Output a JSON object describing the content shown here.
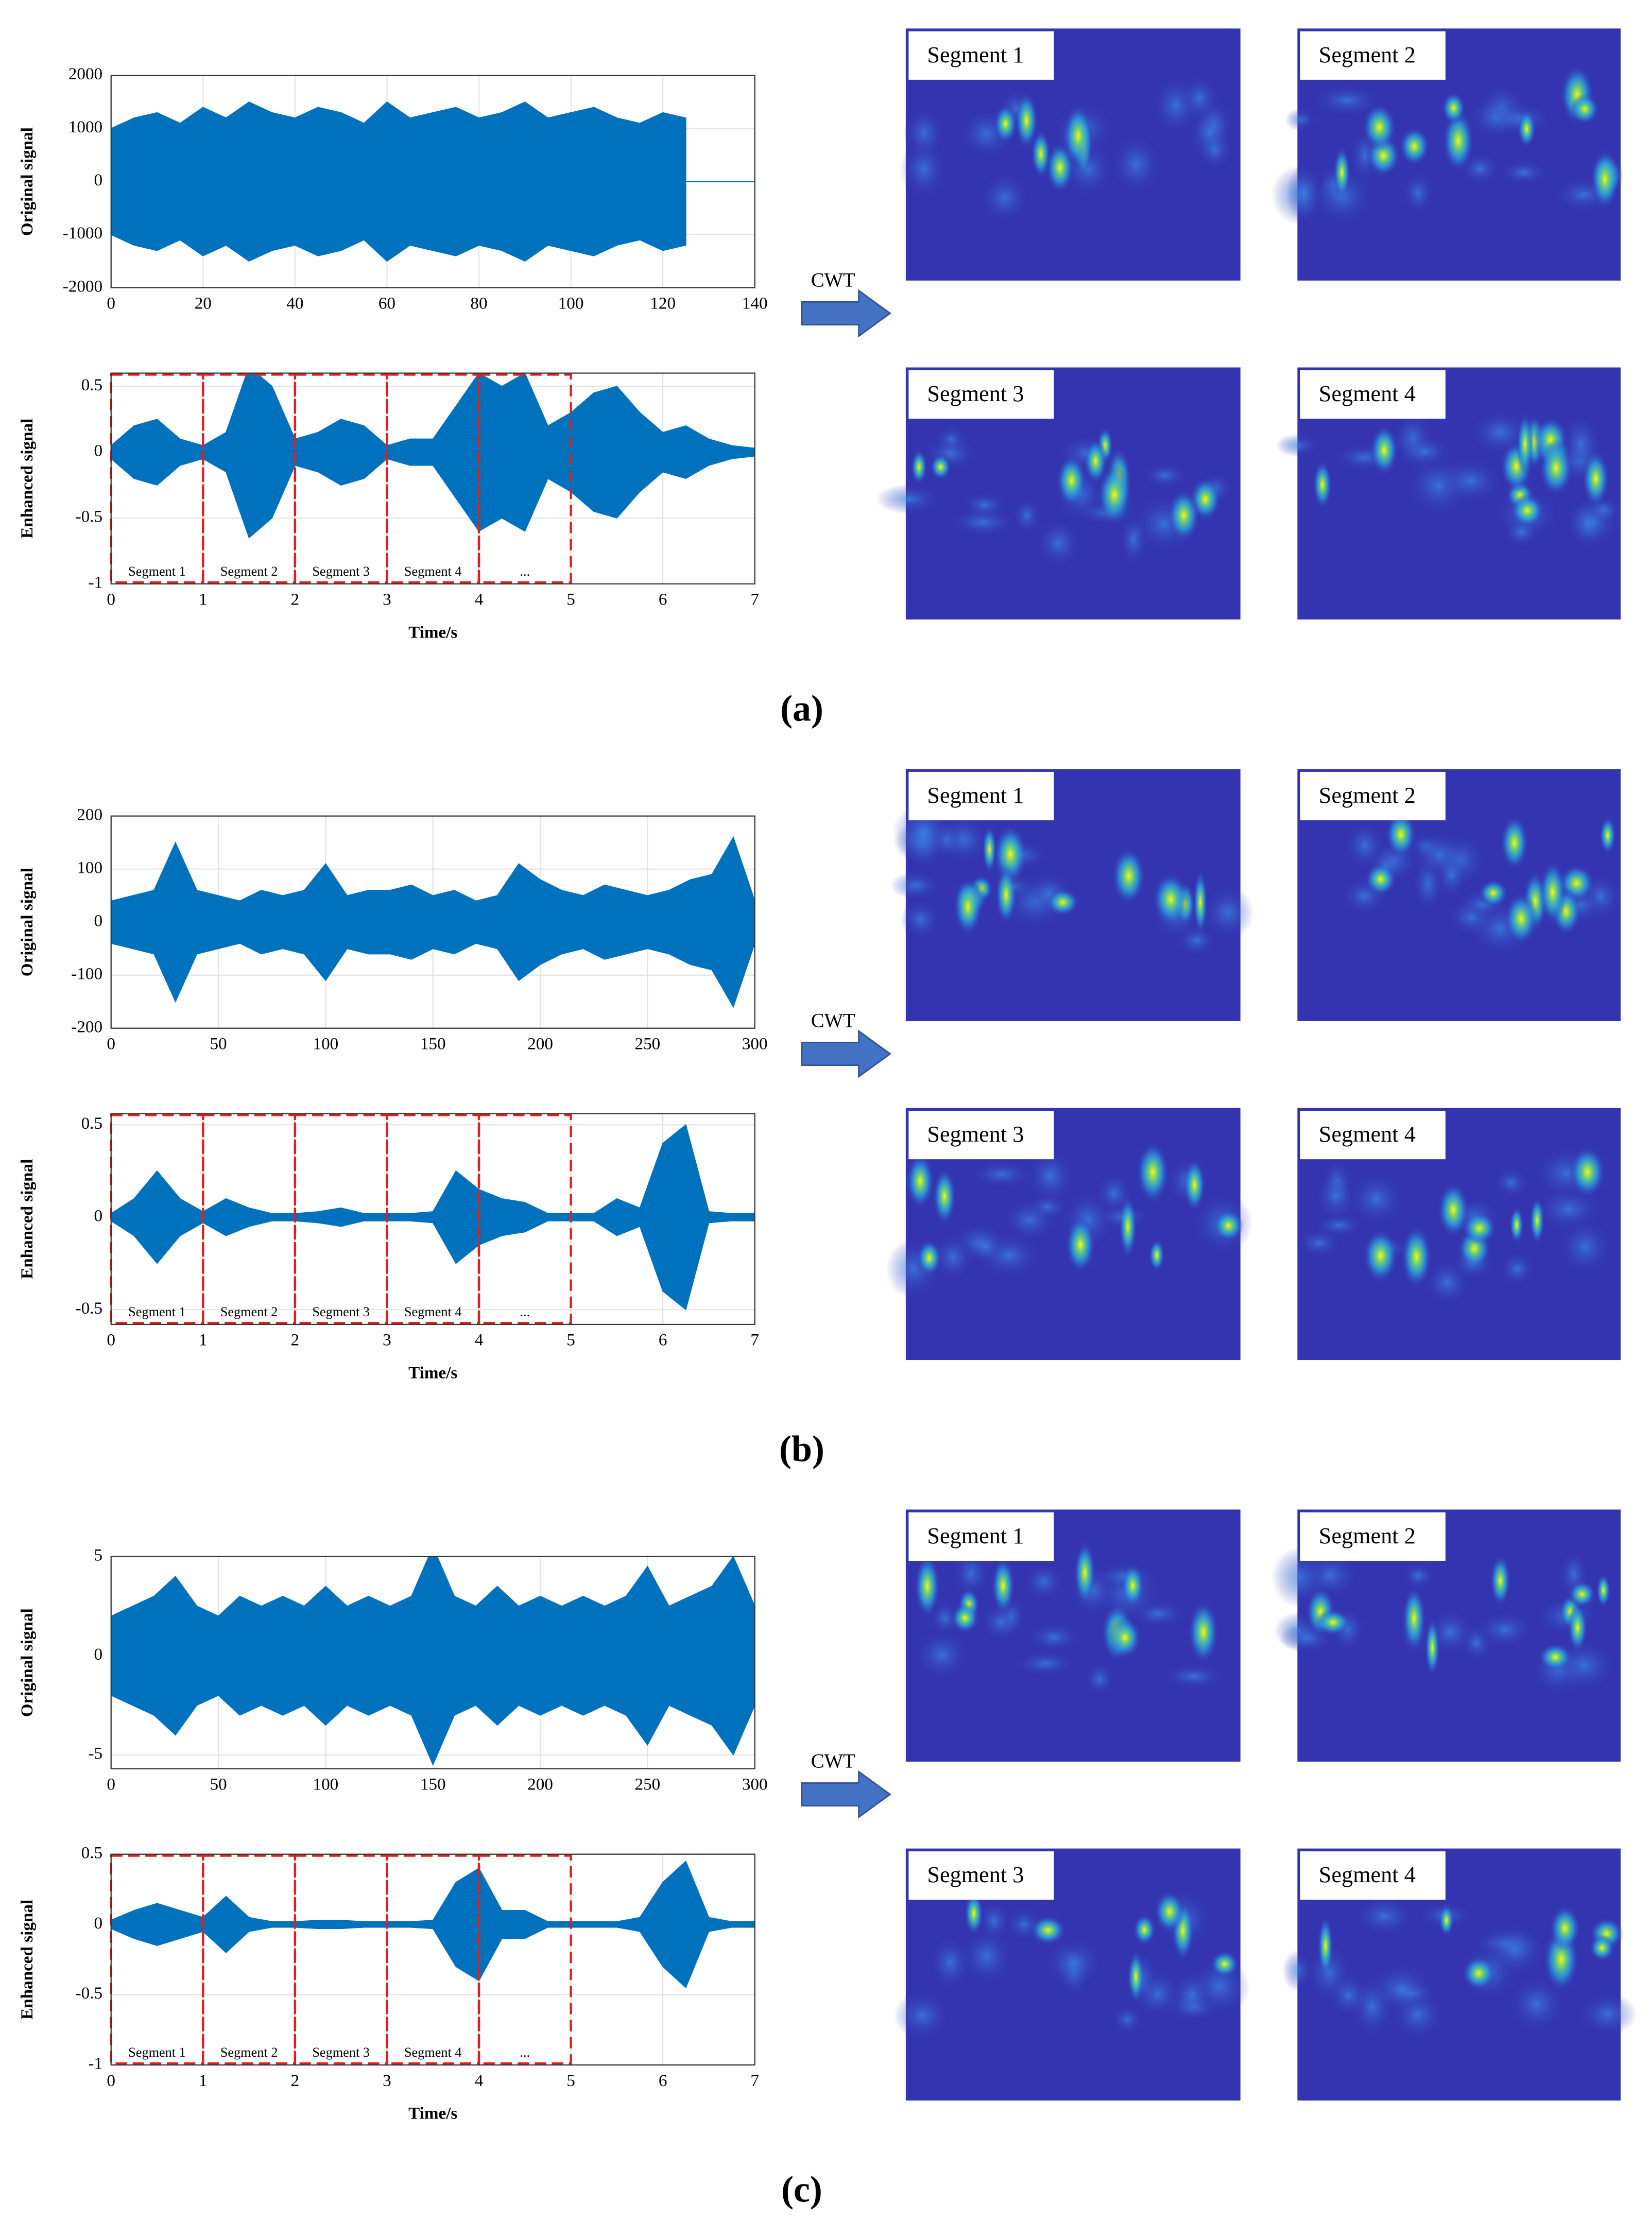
{
  "chart_data": [
    {
      "type": "line",
      "ylabel": "Original signal",
      "color": "#0072bd",
      "grid": true,
      "xlim": [
        0,
        140
      ],
      "xticks": [
        0,
        20,
        40,
        60,
        80,
        100,
        120,
        140
      ],
      "ylim": [
        -2000,
        2000
      ],
      "yticks": [
        -2000,
        -1000,
        0,
        1000,
        2000
      ],
      "x": [
        0,
        5,
        10,
        15,
        20,
        25,
        30,
        35,
        40,
        45,
        50,
        55,
        60,
        65,
        70,
        75,
        80,
        85,
        90,
        95,
        100,
        105,
        110,
        115,
        120,
        125
      ],
      "values": [
        1000,
        1200,
        1300,
        1100,
        1400,
        1200,
        1500,
        1300,
        1200,
        1400,
        1300,
        1100,
        1500,
        1200,
        1300,
        1400,
        1200,
        1300,
        1500,
        1200,
        1300,
        1400,
        1200,
        1100,
        1300,
        1200
      ]
    },
    {
      "type": "line",
      "ylabel": "Enhanced signal",
      "xlabel": "Time/s",
      "color": "#0072bd",
      "grid": true,
      "xlim": [
        0,
        7
      ],
      "xticks": [
        0,
        1,
        2,
        3,
        4,
        5,
        6,
        7
      ],
      "ylim": [
        -1,
        0.6
      ],
      "yticks": [
        -1,
        -0.5,
        0,
        0.5
      ],
      "x": [
        0,
        0.25,
        0.5,
        0.75,
        1,
        1.25,
        1.5,
        1.75,
        2,
        2.25,
        2.5,
        2.75,
        3,
        3.25,
        3.5,
        3.75,
        4,
        4.25,
        4.5,
        4.75,
        5,
        5.25,
        5.5,
        5.75,
        6,
        6.25,
        6.5,
        6.75,
        7
      ],
      "values": [
        0.05,
        0.2,
        0.25,
        0.1,
        0.05,
        0.15,
        0.65,
        0.5,
        0.1,
        0.15,
        0.25,
        0.2,
        0.05,
        0.1,
        0.1,
        0.35,
        0.6,
        0.5,
        0.6,
        0.2,
        0.3,
        0.45,
        0.5,
        0.3,
        0.15,
        0.2,
        0.1,
        0.05,
        0.03
      ],
      "segments": {
        "color": "#e02020",
        "edges": [
          0,
          1,
          2,
          3,
          4,
          5
        ],
        "labels": [
          "Segment 1",
          "Segment 2",
          "Segment 3",
          "Segment 4",
          "..."
        ]
      }
    },
    {
      "type": "line",
      "ylabel": "Original signal",
      "color": "#0072bd",
      "grid": true,
      "xlim": [
        0,
        300
      ],
      "xticks": [
        0,
        50,
        100,
        150,
        200,
        250,
        300
      ],
      "ylim": [
        -200,
        200
      ],
      "yticks": [
        -200,
        -100,
        0,
        100,
        200
      ],
      "x": [
        0,
        10,
        20,
        30,
        40,
        50,
        60,
        70,
        80,
        90,
        100,
        110,
        120,
        130,
        140,
        150,
        160,
        170,
        180,
        190,
        200,
        210,
        220,
        230,
        240,
        250,
        260,
        270,
        280,
        290,
        300
      ],
      "values": [
        40,
        50,
        60,
        150,
        60,
        50,
        40,
        60,
        50,
        60,
        110,
        50,
        60,
        60,
        70,
        50,
        60,
        40,
        50,
        110,
        80,
        60,
        50,
        70,
        60,
        50,
        60,
        80,
        90,
        160,
        40
      ]
    },
    {
      "type": "line",
      "ylabel": "Enhanced signal",
      "xlabel": "Time/s",
      "color": "#0072bd",
      "grid": true,
      "xlim": [
        0,
        7
      ],
      "xticks": [
        0,
        1,
        2,
        3,
        4,
        5,
        6,
        7
      ],
      "ylim": [
        -0.58,
        0.56
      ],
      "yticks": [
        -0.5,
        0,
        0.5
      ],
      "x": [
        0,
        0.25,
        0.5,
        0.75,
        1,
        1.25,
        1.5,
        1.75,
        2,
        2.25,
        2.5,
        2.75,
        3,
        3.25,
        3.5,
        3.75,
        4,
        4.25,
        4.5,
        4.75,
        5,
        5.25,
        5.5,
        5.75,
        6,
        6.25,
        6.5,
        6.75,
        7
      ],
      "values": [
        0.02,
        0.1,
        0.25,
        0.1,
        0.03,
        0.1,
        0.05,
        0.02,
        0.02,
        0.03,
        0.05,
        0.02,
        0.02,
        0.02,
        0.03,
        0.25,
        0.15,
        0.1,
        0.08,
        0.02,
        0.02,
        0.02,
        0.1,
        0.05,
        0.4,
        0.5,
        0.03,
        0.02,
        0.02
      ],
      "segments": {
        "color": "#e02020",
        "edges": [
          0,
          1,
          2,
          3,
          4,
          5
        ],
        "labels": [
          "Segment 1",
          "Segment 2",
          "Segment 3",
          "Segment 4",
          "..."
        ]
      }
    },
    {
      "type": "line",
      "ylabel": "Original signal",
      "color": "#0072bd",
      "grid": true,
      "xlim": [
        0,
        300
      ],
      "xticks": [
        0,
        50,
        100,
        150,
        200,
        250,
        300
      ],
      "ylim": [
        -5.7,
        5
      ],
      "yticks": [
        -5,
        0,
        5
      ],
      "x": [
        0,
        10,
        20,
        30,
        40,
        50,
        60,
        70,
        80,
        90,
        100,
        110,
        120,
        130,
        140,
        150,
        160,
        170,
        180,
        190,
        200,
        210,
        220,
        230,
        240,
        250,
        260,
        270,
        280,
        290,
        300
      ],
      "values": [
        2,
        2.5,
        3,
        4,
        2.5,
        2,
        3,
        2.5,
        3,
        2.5,
        3.5,
        2.5,
        3,
        2.5,
        3,
        5.5,
        3,
        2.5,
        3.5,
        2.5,
        3,
        2.5,
        3,
        2.5,
        3,
        4.5,
        2.5,
        3,
        3.5,
        5,
        2.5
      ]
    },
    {
      "type": "line",
      "ylabel": "Enhanced signal",
      "xlabel": "Time/s",
      "color": "#0072bd",
      "grid": true,
      "xlim": [
        0,
        7
      ],
      "xticks": [
        0,
        1,
        2,
        3,
        4,
        5,
        6,
        7
      ],
      "ylim": [
        -1,
        0.5
      ],
      "yticks": [
        -1,
        -0.5,
        0,
        0.5
      ],
      "x": [
        0,
        0.25,
        0.5,
        0.75,
        1,
        1.25,
        1.5,
        1.75,
        2,
        2.25,
        2.5,
        2.75,
        3,
        3.25,
        3.5,
        3.75,
        4,
        4.25,
        4.5,
        4.75,
        5,
        5.25,
        5.5,
        5.75,
        6,
        6.25,
        6.5,
        6.75,
        7
      ],
      "values": [
        0.03,
        0.1,
        0.15,
        0.1,
        0.05,
        0.2,
        0.05,
        0.02,
        0.02,
        0.03,
        0.03,
        0.02,
        0.02,
        0.02,
        0.03,
        0.3,
        0.4,
        0.1,
        0.1,
        0.02,
        0.02,
        0.02,
        0.02,
        0.05,
        0.3,
        0.45,
        0.05,
        0.02,
        0.02
      ],
      "segments": {
        "color": "#e02020",
        "edges": [
          0,
          1,
          2,
          3,
          4,
          5
        ],
        "labels": [
          "Segment 1",
          "Segment 2",
          "Segment 3",
          "Segment 4",
          "..."
        ]
      }
    }
  ],
  "panels": [
    {
      "caption": "(a)",
      "arrow_label": "CWT",
      "scalograms": [
        "Segment 1",
        "Segment 2",
        "Segment 3",
        "Segment 4"
      ]
    },
    {
      "caption": "(b)",
      "arrow_label": "CWT",
      "scalograms": [
        "Segment 1",
        "Segment 2",
        "Segment 3",
        "Segment 4"
      ]
    },
    {
      "caption": "(c)",
      "arrow_label": "CWT",
      "scalograms": [
        "Segment 1",
        "Segment 2",
        "Segment 3",
        "Segment 4"
      ]
    }
  ]
}
